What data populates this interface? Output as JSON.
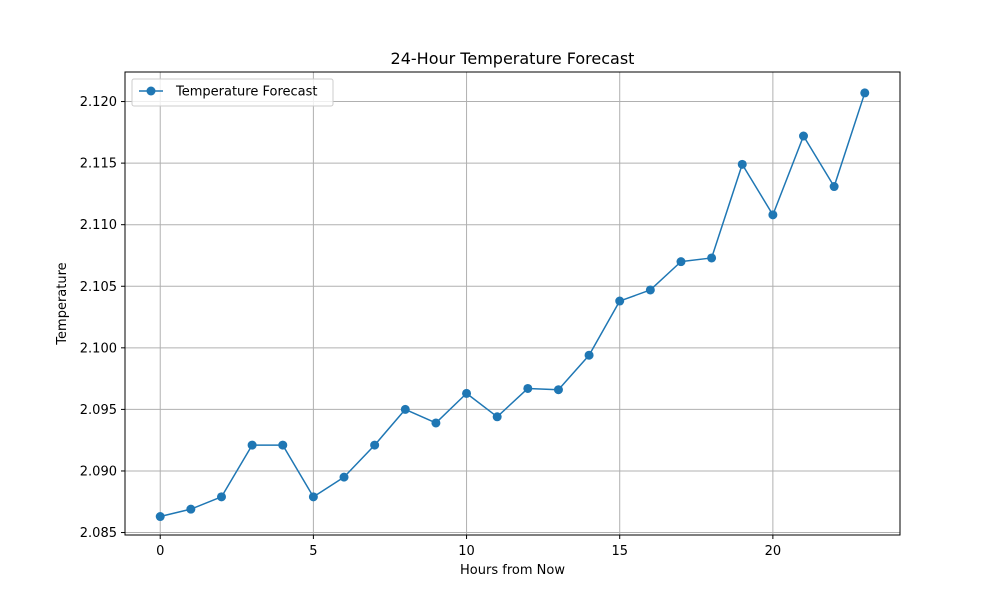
{
  "chart_data": {
    "type": "line",
    "title": "24-Hour Temperature Forecast",
    "xlabel": "Hours from Now",
    "ylabel": "Temperature",
    "xlim": [
      -1.15,
      24.15
    ],
    "ylim": [
      2.0848,
      2.1224
    ],
    "xticks": [
      0,
      5,
      10,
      15,
      20
    ],
    "xtick_labels": [
      "0",
      "5",
      "10",
      "15",
      "20"
    ],
    "yticks": [
      2.085,
      2.09,
      2.095,
      2.1,
      2.105,
      2.11,
      2.115,
      2.12
    ],
    "ytick_labels": [
      "2.085",
      "2.090",
      "2.095",
      "2.100",
      "2.105",
      "2.110",
      "2.115",
      "2.120"
    ],
    "grid": true,
    "legend_position": "upper-left",
    "series": [
      {
        "name": "Temperature Forecast",
        "color": "#1f77b4",
        "marker": "circle",
        "x": [
          0,
          1,
          2,
          3,
          4,
          5,
          6,
          7,
          8,
          9,
          10,
          11,
          12,
          13,
          14,
          15,
          16,
          17,
          18,
          19,
          20,
          21,
          22,
          23
        ],
        "y": [
          2.0863,
          2.0869,
          2.0879,
          2.0921,
          2.0921,
          2.0879,
          2.0895,
          2.0921,
          2.095,
          2.0939,
          2.0963,
          2.0944,
          2.0967,
          2.0966,
          2.0994,
          2.1038,
          2.1047,
          2.107,
          2.1073,
          2.1149,
          2.1108,
          2.1172,
          2.1131,
          2.1207
        ]
      }
    ]
  }
}
